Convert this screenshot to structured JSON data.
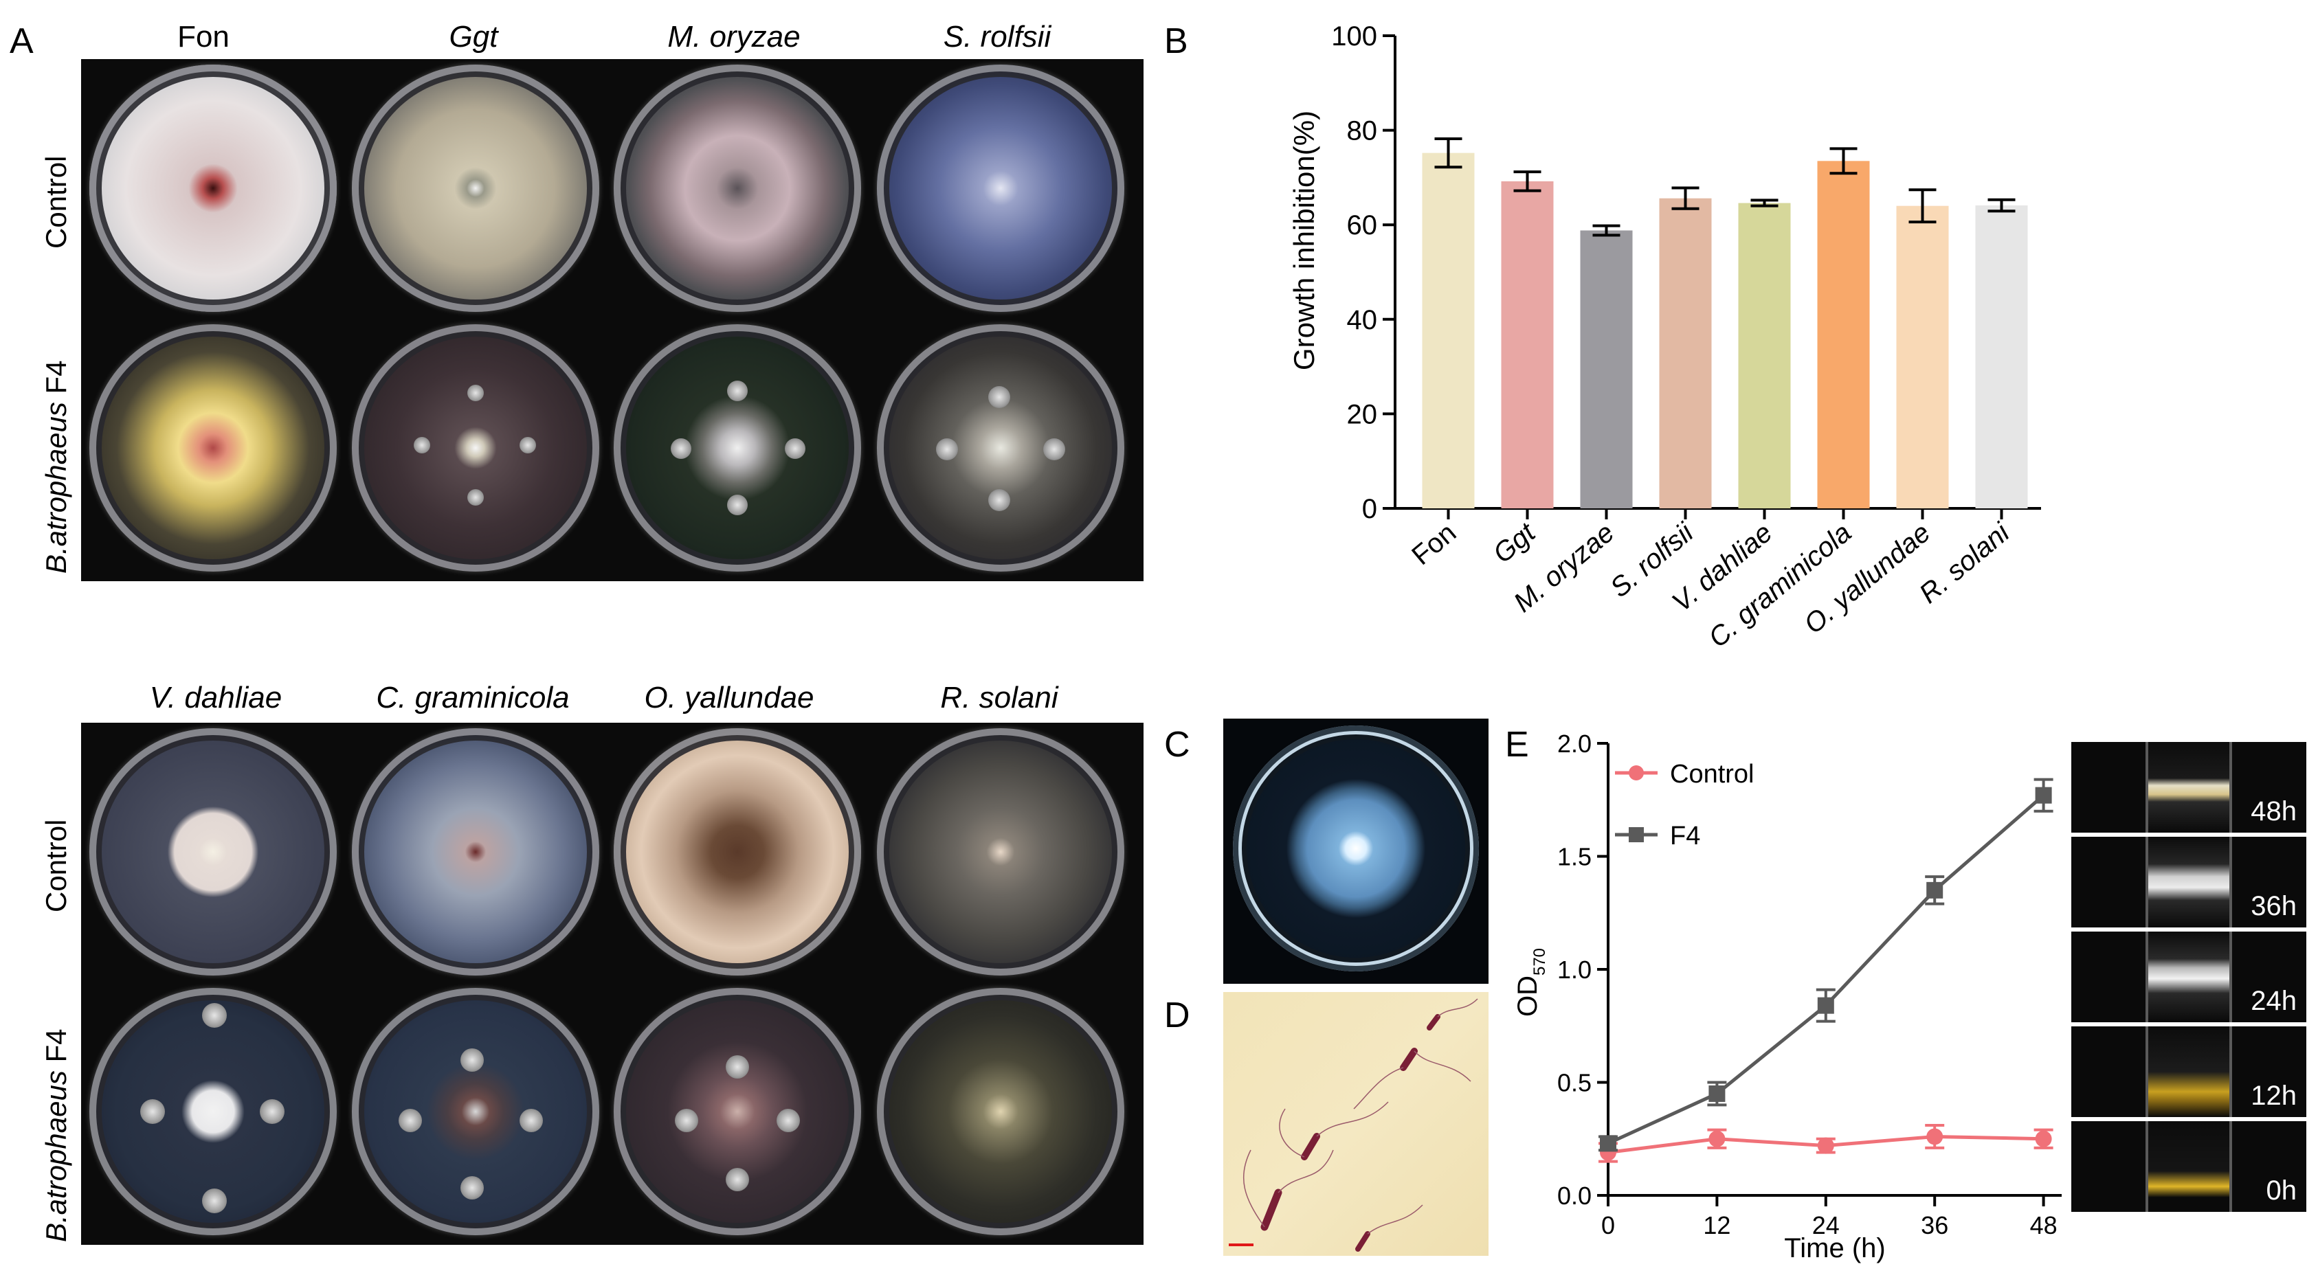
{
  "panels": {
    "A": "A",
    "B": "B",
    "C": "C",
    "D": "D",
    "E": "E"
  },
  "panelA": {
    "top_columns": [
      {
        "label": "Fon",
        "italic": false
      },
      {
        "label": "Ggt",
        "italic": true
      },
      {
        "label": "M. oryzae",
        "italic": true
      },
      {
        "label": "S. rolfsii",
        "italic": true
      }
    ],
    "bottom_columns": [
      {
        "label": "V. dahliae",
        "italic": true
      },
      {
        "label": "C. graminicola",
        "italic": true
      },
      {
        "label": "O. yallundae",
        "italic": true
      },
      {
        "label": "R. solani",
        "italic": true
      }
    ],
    "row_control": "Control",
    "row_treatment_species": "B.atrophaeus",
    "row_treatment_strain": "F4"
  },
  "chart_data": [
    {
      "type": "bar",
      "panel": "B",
      "ylabel": "Growth inhibition(%)",
      "ylim": [
        0,
        100
      ],
      "yticks": [
        0,
        20,
        40,
        60,
        80,
        100
      ],
      "categories": [
        "Fon",
        "Ggt",
        "M. oryzae",
        "S. rolfsii",
        "V. dahliae",
        "C. graminicola",
        "O. yallundae",
        "R. solani"
      ],
      "values": [
        75.2,
        69.2,
        58.8,
        65.6,
        64.6,
        73.5,
        64.0,
        64.1
      ],
      "errors": [
        3.0,
        2.0,
        1.0,
        2.2,
        0.6,
        2.6,
        3.4,
        1.2
      ],
      "colors": [
        "#efe6c4",
        "#e8a7a4",
        "#9b9a9f",
        "#e2b9a3",
        "#d6d79a",
        "#f8a86a",
        "#f9d9b6",
        "#e6e6e6"
      ]
    },
    {
      "type": "line",
      "panel": "E",
      "xlabel": "Time (h)",
      "ylabel_main": "OD",
      "ylabel_sub": "570",
      "x": [
        0,
        12,
        24,
        36,
        48
      ],
      "xticks": [
        0,
        12,
        24,
        36,
        48
      ],
      "xlim": [
        0,
        50
      ],
      "ylim": [
        0,
        2.0
      ],
      "yticks": [
        "0.0",
        "0.5",
        "1.0",
        "1.5",
        "2.0"
      ],
      "legend_position": "top-left",
      "series": [
        {
          "name": "Control",
          "values": [
            0.19,
            0.25,
            0.22,
            0.26,
            0.25
          ],
          "errors": [
            0.04,
            0.04,
            0.03,
            0.05,
            0.04
          ],
          "color": "#f07178",
          "marker": "circle"
        },
        {
          "name": "F4",
          "values": [
            0.23,
            0.45,
            0.84,
            1.35,
            1.77
          ],
          "errors": [
            0.03,
            0.05,
            0.07,
            0.06,
            0.07
          ],
          "color": "#5a5a5a",
          "marker": "square"
        }
      ]
    }
  ],
  "tubes": {
    "labels": [
      "48h",
      "36h",
      "24h",
      "12h",
      "0h"
    ]
  }
}
